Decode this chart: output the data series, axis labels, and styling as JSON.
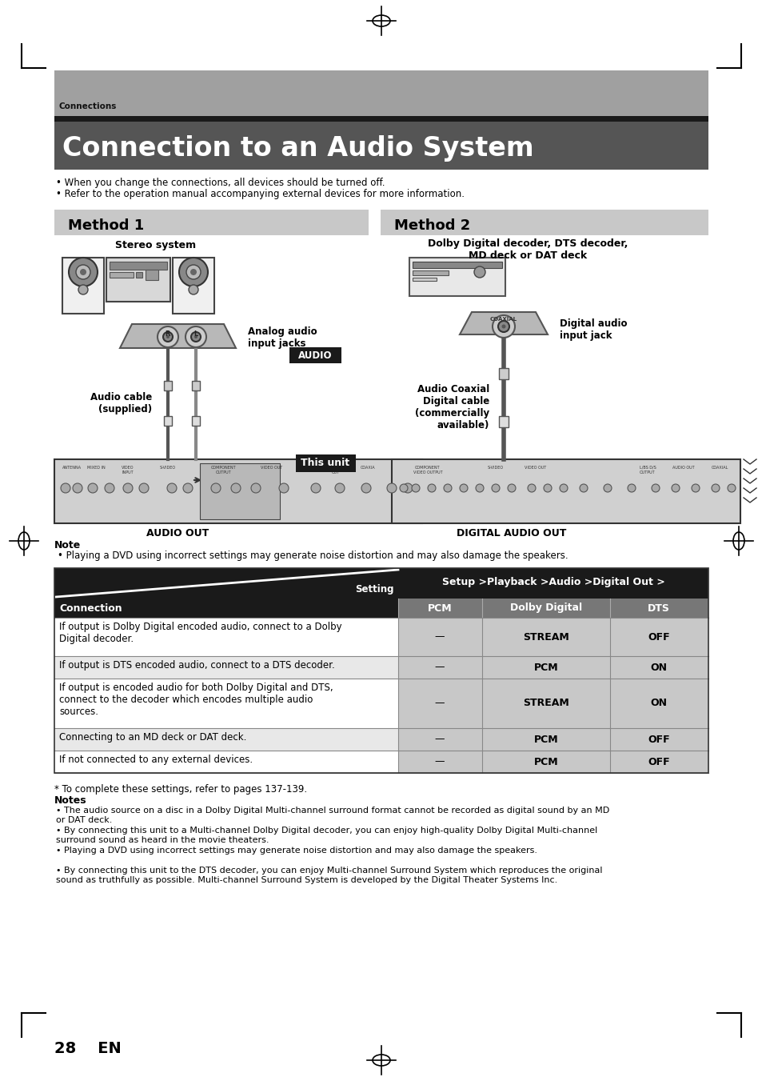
{
  "page_bg": "#ffffff",
  "header_bg": "#a0a0a0",
  "header_dark_bar": "#1a1a1a",
  "title_bg": "#555555",
  "title_text": "Connection to an Audio System",
  "title_color": "#ffffff",
  "connections_label": "Connections",
  "bullet1": "When you change the connections, all devices should be turned off.",
  "bullet2": "Refer to the operation manual accompanying external devices for more information.",
  "method1_label": "Method 1",
  "method2_label": "Method 2",
  "method_bg": "#c8c8c8",
  "stereo_label": "Stereo system",
  "dolby_label": "Dolby Digital decoder, DTS decoder,\nMD deck or DAT deck",
  "analog_label": "Analog audio\ninput jacks",
  "digital_label": "Digital audio\ninput jack",
  "audio_cable_label": "Audio cable\n(supplied)",
  "audio_coaxial_label": "Audio Coaxial\nDigital cable\n(commercially\navailable)",
  "audio_tag": "AUDIO",
  "this_unit_tag": "This unit",
  "tag_bg": "#1a1a1a",
  "audio_out_label": "AUDIO OUT",
  "digital_audio_out_label": "DIGITAL AUDIO OUT",
  "note_title": "Note",
  "note_text": "Playing a DVD using incorrect settings may generate noise distortion and may also damage the speakers.",
  "table_header_bg": "#1a1a1a",
  "table_col_bg": "#c8c8c8",
  "setting_label": "Setting",
  "setup_label": "Setup >Playback >Audio >Digital Out >",
  "connection_label": "Connection",
  "col_pcm": "PCM",
  "col_dolby": "Dolby Digital",
  "col_dts": "DTS",
  "table_rows": [
    {
      "connection": "If output is Dolby Digital encoded audio, connect to a Dolby\nDigital decoder.",
      "pcm": "—",
      "dolby": "STREAM",
      "dts": "OFF",
      "row_bg": "#ffffff"
    },
    {
      "connection": "If output is DTS encoded audio, connect to a DTS decoder.",
      "pcm": "—",
      "dolby": "PCM",
      "dts": "ON",
      "row_bg": "#e8e8e8"
    },
    {
      "connection": "If output is encoded audio for both Dolby Digital and DTS,\nconnect to the decoder which encodes multiple audio\nsources.",
      "pcm": "—",
      "dolby": "STREAM",
      "dts": "ON",
      "row_bg": "#ffffff"
    },
    {
      "connection": "Connecting to an MD deck or DAT deck.",
      "pcm": "—",
      "dolby": "PCM",
      "dts": "OFF",
      "row_bg": "#e8e8e8"
    },
    {
      "connection": "If not connected to any external devices.",
      "pcm": "—",
      "dolby": "PCM",
      "dts": "OFF",
      "row_bg": "#ffffff"
    }
  ],
  "footnote": "* To complete these settings, refer to pages 137-139.",
  "notes_title": "Notes",
  "notes": [
    "The audio source on a disc in a Dolby Digital Multi-channel surround format cannot be recorded as digital sound by an MD\nor DAT deck.",
    "By connecting this unit to a Multi-channel Dolby Digital decoder, you can enjoy high-quality Dolby Digital Multi-channel\nsurround sound as heard in the movie theaters.",
    "Playing a DVD using incorrect settings may generate noise distortion and may also damage the speakers.",
    "By connecting this unit to the DTS decoder, you can enjoy Multi-channel Surround System which reproduces the original\nsound as truthfully as possible. Multi-channel Surround System is developed by the Digital Theater Systems Inc."
  ],
  "page_number": "28    EN"
}
